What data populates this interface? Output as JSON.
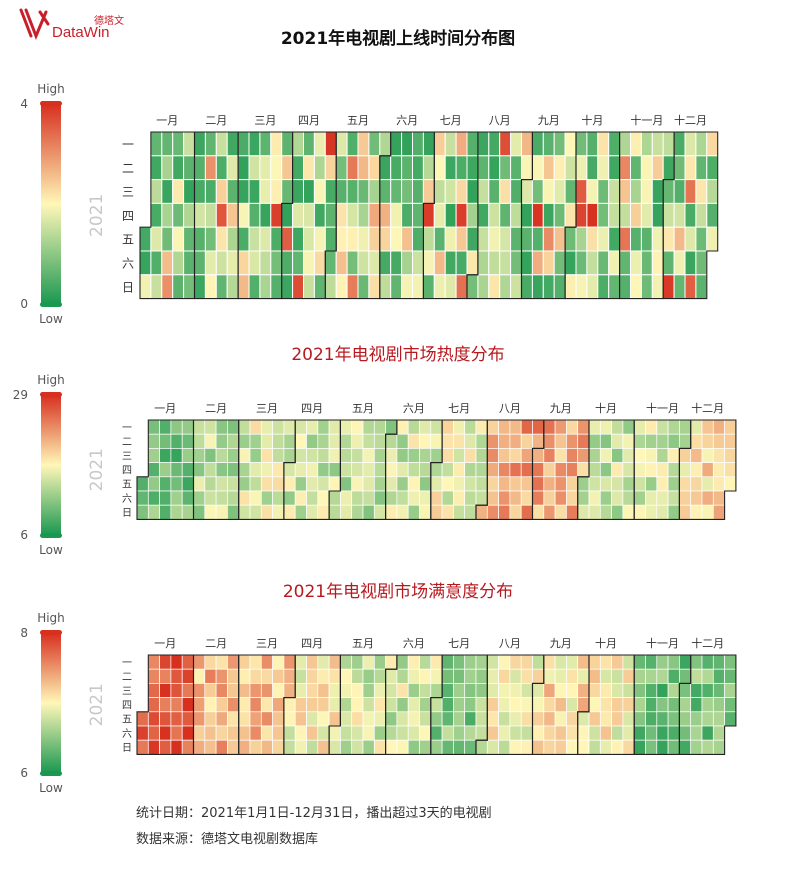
{
  "logo": {
    "cn": "德塔文",
    "en": "DataWin"
  },
  "colors": {
    "high": "#d7301f",
    "mid": "#fff7b8",
    "low": "#1a9850",
    "border": "#222222",
    "title_red": "#b8191f"
  },
  "months": [
    "一月",
    "二月",
    "三月",
    "四月",
    "五月",
    "六月",
    "七月",
    "八月",
    "九月",
    "十月",
    "十一月",
    "十二月"
  ],
  "weekdays": [
    "一",
    "二",
    "三",
    "四",
    "五",
    "六",
    "日"
  ],
  "legend_labels": {
    "high": "High",
    "low": "Low"
  },
  "footer": {
    "line1": "统计日期：2021年1月1日-12月31日，播出超过3天的电视剧",
    "line2": "数据来源：德塔文电视剧数据库"
  },
  "chart_data": [
    {
      "type": "heatmap",
      "kind": "calendar",
      "title": "2021年电视剧上线时间分布图",
      "year": "2021",
      "vmin": 0,
      "vmax": 4,
      "legend_ticks": [
        "4",
        "0"
      ],
      "seed": 11
    },
    {
      "type": "heatmap",
      "kind": "calendar",
      "title": "2021年电视剧市场热度分布",
      "year": "2021",
      "vmin": 6,
      "vmax": 29,
      "legend_ticks": [
        "29",
        "6"
      ],
      "seed": 23
    },
    {
      "type": "heatmap",
      "kind": "calendar",
      "title": "2021年电视剧市场满意度分布",
      "year": "2021",
      "vmin": 6,
      "vmax": 8,
      "legend_ticks": [
        "8",
        "6"
      ],
      "seed": 37
    }
  ]
}
